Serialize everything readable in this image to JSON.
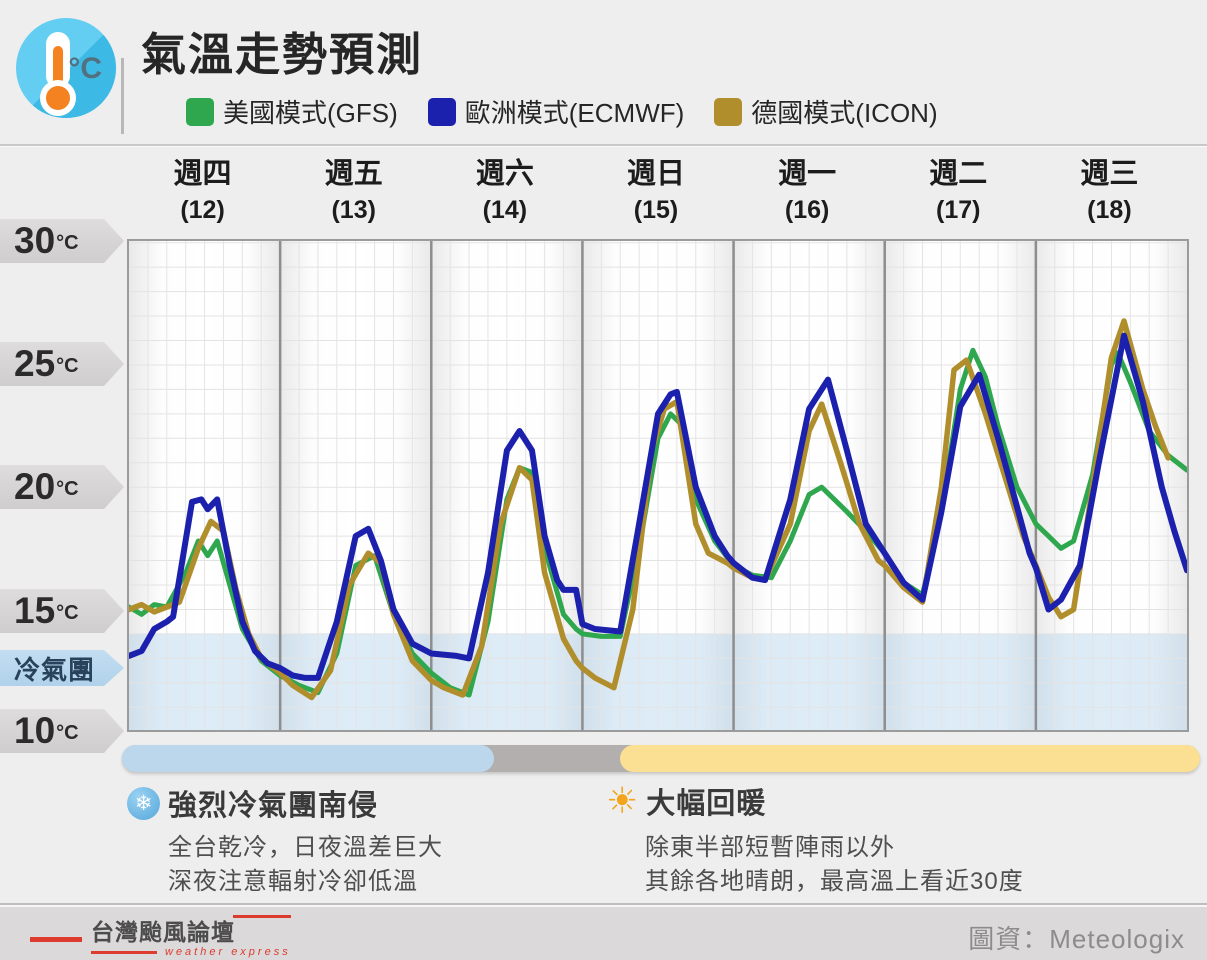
{
  "header": {
    "title": "氣溫走勢預測",
    "icon": "thermometer-degc-icon",
    "icon_degc_text": "°C",
    "legend": [
      {
        "label": "美國模式(GFS)",
        "color": "#2ea74e"
      },
      {
        "label": "歐洲模式(ECMWF)",
        "color": "#1c21ad"
      },
      {
        "label": "德國模式(ICON)",
        "color": "#b18e2c"
      }
    ]
  },
  "chart_data": {
    "type": "line",
    "title": "氣溫走勢預測",
    "x_unit": "hours (3-hourly forecast steps across 7 days)",
    "x_range_hours": [
      0,
      168
    ],
    "ylim": [
      10,
      30.5
    ],
    "grid": "on",
    "x_axis": [
      {
        "name": "週四",
        "date": "(12)"
      },
      {
        "name": "週五",
        "date": "(13)"
      },
      {
        "name": "週六",
        "date": "(14)"
      },
      {
        "name": "週日",
        "date": "(15)"
      },
      {
        "name": "週一",
        "date": "(16)"
      },
      {
        "name": "週二",
        "date": "(17)"
      },
      {
        "name": "週三",
        "date": "(18)"
      }
    ],
    "y_axis": [
      {
        "value": "30",
        "unit": "°C",
        "temp": 30
      },
      {
        "value": "25",
        "unit": "°C",
        "temp": 25
      },
      {
        "value": "20",
        "unit": "°C",
        "temp": 20
      },
      {
        "value": "15",
        "unit": "°C",
        "temp": 15
      },
      {
        "value": "10",
        "unit": "°C",
        "temp": 10
      }
    ],
    "cold_band": {
      "label": "冷氣團",
      "below_temp": 14,
      "color": "#b0d2ec"
    },
    "series": [
      {
        "name": "美國模式(GFS)",
        "color": "#2ea74e",
        "width": 5,
        "points": [
          [
            0,
            15.1
          ],
          [
            2,
            14.8
          ],
          [
            4,
            15.2
          ],
          [
            6,
            15.1
          ],
          [
            9,
            16.5
          ],
          [
            11,
            17.8
          ],
          [
            12.5,
            17.2
          ],
          [
            14,
            17.8
          ],
          [
            16,
            16.0
          ],
          [
            18,
            14.2
          ],
          [
            21,
            12.9
          ],
          [
            24,
            12.3
          ],
          [
            27,
            11.9
          ],
          [
            30,
            11.6
          ],
          [
            33,
            13.2
          ],
          [
            36,
            16.8
          ],
          [
            39,
            17.2
          ],
          [
            42,
            14.8
          ],
          [
            45,
            13.2
          ],
          [
            48,
            12.4
          ],
          [
            51,
            11.8
          ],
          [
            54,
            11.5
          ],
          [
            57,
            14.5
          ],
          [
            60,
            19.5
          ],
          [
            62,
            20.8
          ],
          [
            64,
            20.6
          ],
          [
            66,
            17.5
          ],
          [
            69,
            14.8
          ],
          [
            71,
            14.2
          ],
          [
            72,
            14.0
          ],
          [
            75,
            13.9
          ],
          [
            78,
            13.9
          ],
          [
            81,
            17.5
          ],
          [
            84,
            22.0
          ],
          [
            86,
            23.0
          ],
          [
            88,
            22.5
          ],
          [
            90,
            19.5
          ],
          [
            93,
            17.8
          ],
          [
            96,
            16.8
          ],
          [
            99,
            16.4
          ],
          [
            102,
            16.3
          ],
          [
            105,
            17.8
          ],
          [
            108,
            19.7
          ],
          [
            110,
            20.0
          ],
          [
            114,
            19.0
          ],
          [
            117,
            18.2
          ],
          [
            120,
            17.3
          ],
          [
            123,
            16.1
          ],
          [
            126,
            15.6
          ],
          [
            129,
            19.0
          ],
          [
            132,
            24.0
          ],
          [
            134,
            25.6
          ],
          [
            136,
            24.5
          ],
          [
            138,
            22.5
          ],
          [
            141,
            20.0
          ],
          [
            144,
            18.5
          ],
          [
            146,
            18.0
          ],
          [
            148,
            17.5
          ],
          [
            150,
            17.8
          ],
          [
            153,
            20.5
          ],
          [
            156,
            25.0
          ],
          [
            157,
            25.5
          ],
          [
            159,
            24.3
          ],
          [
            162,
            22.3
          ],
          [
            165,
            21.3
          ],
          [
            168,
            20.7
          ]
        ]
      },
      {
        "name": "德國模式(ICON)",
        "color": "#b18e2c",
        "width": 5.5,
        "points": [
          [
            0,
            15.0
          ],
          [
            2,
            15.2
          ],
          [
            4,
            14.9
          ],
          [
            6,
            15.1
          ],
          [
            8,
            15.3
          ],
          [
            11,
            17.5
          ],
          [
            13,
            18.6
          ],
          [
            15,
            18.2
          ],
          [
            17,
            15.8
          ],
          [
            19,
            14.0
          ],
          [
            21,
            13.0
          ],
          [
            24,
            12.4
          ],
          [
            26,
            11.9
          ],
          [
            29,
            11.4
          ],
          [
            32,
            12.5
          ],
          [
            35,
            16.0
          ],
          [
            38,
            17.3
          ],
          [
            40,
            16.9
          ],
          [
            42,
            14.8
          ],
          [
            45,
            12.9
          ],
          [
            48,
            12.1
          ],
          [
            50,
            11.8
          ],
          [
            53,
            11.5
          ],
          [
            56,
            13.5
          ],
          [
            59,
            18.5
          ],
          [
            62,
            20.8
          ],
          [
            64,
            20.3
          ],
          [
            66,
            16.5
          ],
          [
            69,
            13.8
          ],
          [
            71,
            12.9
          ],
          [
            72,
            12.6
          ],
          [
            74,
            12.2
          ],
          [
            77,
            11.8
          ],
          [
            80,
            15.0
          ],
          [
            83,
            21.5
          ],
          [
            85,
            23.2
          ],
          [
            87,
            23.5
          ],
          [
            90,
            18.5
          ],
          [
            92,
            17.3
          ],
          [
            95,
            16.9
          ],
          [
            96,
            16.7
          ],
          [
            99,
            16.3
          ],
          [
            101,
            16.2
          ],
          [
            105,
            18.5
          ],
          [
            108,
            22.3
          ],
          [
            110,
            23.4
          ],
          [
            113,
            21.0
          ],
          [
            116,
            18.5
          ],
          [
            119,
            17.0
          ],
          [
            120,
            16.8
          ],
          [
            123,
            15.9
          ],
          [
            126,
            15.3
          ],
          [
            129,
            20.0
          ],
          [
            131,
            24.8
          ],
          [
            133,
            25.2
          ],
          [
            136,
            23.0
          ],
          [
            139,
            20.5
          ],
          [
            142,
            18.0
          ],
          [
            144,
            16.8
          ],
          [
            146,
            15.5
          ],
          [
            148,
            14.7
          ],
          [
            150,
            15.0
          ],
          [
            153,
            20.0
          ],
          [
            156,
            25.3
          ],
          [
            158,
            26.8
          ],
          [
            161,
            24.0
          ],
          [
            163,
            22.5
          ],
          [
            165,
            21.2
          ]
        ]
      },
      {
        "name": "歐洲模式(ECMWF)",
        "color": "#1c21ad",
        "width": 6,
        "points": [
          [
            0,
            13.1
          ],
          [
            2,
            13.3
          ],
          [
            4,
            14.2
          ],
          [
            6,
            14.5
          ],
          [
            7,
            14.7
          ],
          [
            10,
            19.4
          ],
          [
            11.5,
            19.5
          ],
          [
            12.5,
            19.1
          ],
          [
            14,
            19.5
          ],
          [
            16,
            16.8
          ],
          [
            18,
            14.5
          ],
          [
            20,
            13.3
          ],
          [
            22,
            12.8
          ],
          [
            24,
            12.6
          ],
          [
            26,
            12.3
          ],
          [
            28,
            12.2
          ],
          [
            30,
            12.2
          ],
          [
            33,
            14.5
          ],
          [
            36,
            18.0
          ],
          [
            38,
            18.3
          ],
          [
            40,
            17.0
          ],
          [
            42,
            15.0
          ],
          [
            45,
            13.6
          ],
          [
            48,
            13.2
          ],
          [
            52,
            13.1
          ],
          [
            54,
            13.0
          ],
          [
            57,
            16.5
          ],
          [
            60,
            21.5
          ],
          [
            62,
            22.3
          ],
          [
            64,
            21.5
          ],
          [
            66,
            18.0
          ],
          [
            68,
            16.2
          ],
          [
            69,
            15.8
          ],
          [
            71,
            15.8
          ],
          [
            72,
            14.4
          ],
          [
            74,
            14.2
          ],
          [
            78,
            14.1
          ],
          [
            81,
            18.5
          ],
          [
            84,
            23.0
          ],
          [
            86,
            23.8
          ],
          [
            87,
            23.9
          ],
          [
            90,
            20.0
          ],
          [
            93,
            18.0
          ],
          [
            95,
            17.2
          ],
          [
            96,
            16.9
          ],
          [
            99,
            16.3
          ],
          [
            101,
            16.2
          ],
          [
            105,
            19.5
          ],
          [
            108,
            23.2
          ],
          [
            110,
            24.0
          ],
          [
            111,
            24.4
          ],
          [
            114,
            21.5
          ],
          [
            117,
            18.5
          ],
          [
            120,
            17.3
          ],
          [
            123,
            16.1
          ],
          [
            126,
            15.4
          ],
          [
            129,
            19.0
          ],
          [
            132,
            23.3
          ],
          [
            135,
            24.6
          ],
          [
            138,
            22.0
          ],
          [
            141,
            19.2
          ],
          [
            143,
            17.3
          ],
          [
            144,
            16.7
          ],
          [
            146,
            15.0
          ],
          [
            148,
            15.4
          ],
          [
            151,
            16.8
          ],
          [
            154,
            21.0
          ],
          [
            158,
            26.2
          ],
          [
            161,
            23.5
          ],
          [
            164,
            20.0
          ],
          [
            166,
            18.2
          ],
          [
            168,
            16.6
          ]
        ]
      }
    ]
  },
  "timeline": {
    "segments": [
      {
        "name": "cold-period",
        "color": "#bcd6ec",
        "start_frac": 0.0,
        "end_frac": 0.345
      },
      {
        "name": "transition-period",
        "color": "#b2afae",
        "start_frac": 0.345,
        "end_frac": 0.462
      },
      {
        "name": "warm-period",
        "color": "#fbe094",
        "start_frac": 0.462,
        "end_frac": 1.0
      }
    ]
  },
  "annotations": {
    "cold": {
      "icon": "snowflake-icon",
      "icon_glyph": "❄",
      "title": "強烈冷氣團南侵",
      "lines": [
        "全台乾冷，日夜溫差巨大",
        "深夜注意輻射冷卻低溫"
      ]
    },
    "warm": {
      "icon": "sun-icon",
      "icon_glyph": "☀",
      "title": "大幅回暖",
      "lines": [
        "除東半部短暫陣雨以外",
        "其餘各地晴朗，最高溫上看近30度"
      ]
    }
  },
  "footer": {
    "logo_main": "台灣颱風論壇",
    "logo_sub": "weather express",
    "credit": "圖資：Meteologix"
  }
}
